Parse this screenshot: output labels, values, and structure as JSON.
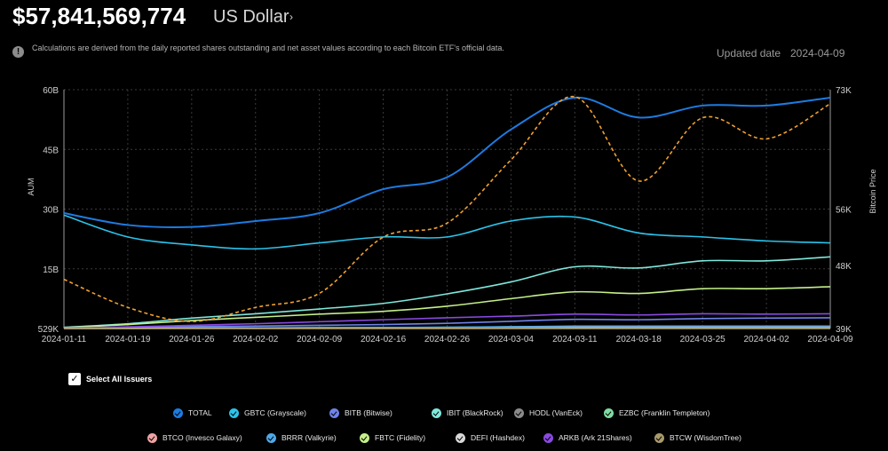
{
  "header": {
    "total_value": "$57,841,569,774",
    "currency": "US Dollar",
    "info_note": "Calculations are derived from the daily reported shares outstanding and net asset values according to each Bitcoin ETF's official data.",
    "updated_label": "Updated date",
    "updated_date": "2024-04-09"
  },
  "controls": {
    "select_all_label": "Select All Issuers"
  },
  "chart_data": {
    "type": "line",
    "x": [
      "2024-01-11",
      "2024-01-19",
      "2024-01-26",
      "2024-02-02",
      "2024-02-09",
      "2024-02-16",
      "2024-02-26",
      "2024-03-04",
      "2024-03-11",
      "2024-03-18",
      "2024-03-25",
      "2024-04-02",
      "2024-04-09"
    ],
    "x_ticks": [
      "2024-01-11",
      "2024-01-19",
      "2024-01-26",
      "2024-02-02",
      "2024-02-09",
      "2024-02-16",
      "2024-02-26",
      "2024-03-04",
      "2024-03-11",
      "2024-03-18",
      "2024-03-25",
      "2024-04-02",
      "2024-04-09"
    ],
    "ylabel": "AUM",
    "y2label": "Bitcoin Price",
    "yticks": [
      "529K",
      "15B",
      "30B",
      "45B",
      "60B"
    ],
    "y2ticks": [
      "39K",
      "48K",
      "56K",
      "73K"
    ],
    "ylim": [
      0,
      60
    ],
    "y2lim": [
      39,
      73
    ],
    "grid": true,
    "series": [
      {
        "name": "TOTAL",
        "color": "#1e7be0",
        "values": [
          29,
          26,
          25.5,
          27,
          29,
          35,
          38,
          50,
          58,
          53,
          56,
          56,
          58
        ]
      },
      {
        "name": "GBTC (Grayscale)",
        "color": "#2bc3ea",
        "values": [
          28.5,
          23,
          21,
          20,
          21.5,
          23,
          23,
          27,
          28,
          24,
          23,
          22,
          21.5
        ]
      },
      {
        "name": "BITB (Bitwise)",
        "color": "#6f83e8",
        "values": [
          0.05,
          0.3,
          0.5,
          0.6,
          0.8,
          1.0,
          1.3,
          1.8,
          2.3,
          2.2,
          2.5,
          2.6,
          2.7
        ]
      },
      {
        "name": "IBIT (BlackRock)",
        "color": "#7fe8dc",
        "values": [
          0.3,
          1.2,
          2.6,
          3.7,
          4.9,
          6.3,
          8.7,
          11.7,
          15.5,
          15.2,
          17,
          17,
          18
        ]
      },
      {
        "name": "HODL (VanEck)",
        "color": "#8a8a8a",
        "values": [
          0.02,
          0.05,
          0.1,
          0.1,
          0.2,
          0.2,
          0.3,
          0.4,
          0.5,
          0.5,
          0.5,
          0.5,
          0.5
        ]
      },
      {
        "name": "EZBC (Franklin Templeton)",
        "color": "#7fdca0",
        "values": [
          0.02,
          0.05,
          0.1,
          0.15,
          0.2,
          0.25,
          0.3,
          0.35,
          0.4,
          0.4,
          0.4,
          0.4,
          0.4
        ]
      },
      {
        "name": "BTCO (Invesco Galaxy)",
        "color": "#f0a3a3",
        "values": [
          0.02,
          0.05,
          0.1,
          0.1,
          0.15,
          0.2,
          0.25,
          0.3,
          0.35,
          0.35,
          0.35,
          0.35,
          0.35
        ]
      },
      {
        "name": "BRRR (Valkyrie)",
        "color": "#4ea8e8",
        "values": [
          0.02,
          0.05,
          0.1,
          0.15,
          0.2,
          0.25,
          0.3,
          0.45,
          0.6,
          0.6,
          0.6,
          0.6,
          0.6
        ]
      },
      {
        "name": "FBTC (Fidelity)",
        "color": "#c4ef8a",
        "values": [
          0.2,
          1.0,
          2.0,
          2.8,
          3.6,
          4.3,
          5.6,
          7.5,
          9.2,
          8.8,
          10,
          10,
          10.5
        ]
      },
      {
        "name": "DEFI (Hashdex)",
        "color": "#d9d9d9",
        "values": [
          0.01,
          0.01,
          0.01,
          0.01,
          0.01,
          0.01,
          0.01,
          0.01,
          0.02,
          0.02,
          0.02,
          0.02,
          0.02
        ]
      },
      {
        "name": "ARKB (Ark 21Shares)",
        "color": "#8a4ae0",
        "values": [
          0.1,
          0.4,
          0.8,
          1.2,
          1.7,
          2.2,
          2.7,
          3.1,
          3.6,
          3.4,
          3.7,
          3.6,
          3.7
        ]
      },
      {
        "name": "BTCW (WisdomTree)",
        "color": "#a89a6a",
        "values": [
          0.01,
          0.02,
          0.03,
          0.03,
          0.04,
          0.05,
          0.05,
          0.06,
          0.07,
          0.07,
          0.07,
          0.07,
          0.07
        ]
      },
      {
        "name": "Bitcoin Price",
        "color": "#f0a030",
        "axis": "right",
        "dashed": true,
        "values": [
          46,
          42,
          40,
          42,
          44,
          52,
          54,
          63,
          72,
          60,
          69,
          66,
          71
        ]
      }
    ]
  }
}
